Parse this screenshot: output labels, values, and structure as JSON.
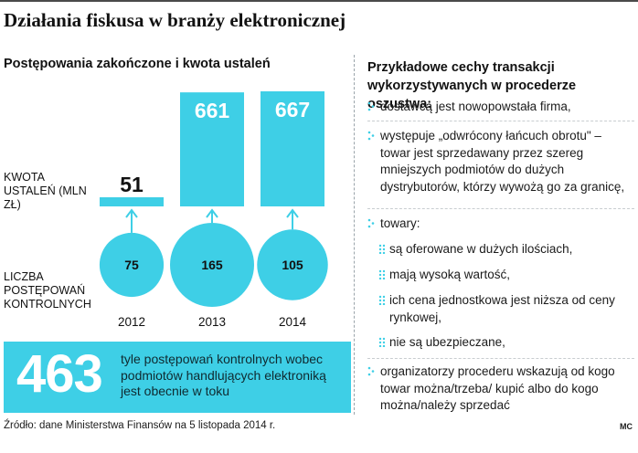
{
  "title": "Działania fiskusa w branży elektronicznej",
  "chart_data": {
    "type": "bar",
    "subtitle": "Postępowania zakończone i kwota ustaleń",
    "categories": [
      "2012",
      "2013",
      "2014"
    ],
    "series": [
      {
        "name": "KWOTA USTALEŃ (MLN ZŁ)",
        "values": [
          51,
          661,
          667
        ]
      },
      {
        "name": "LICZBA POSTĘPOWAŃ KONTROLNYCH",
        "values": [
          75,
          165,
          105
        ]
      }
    ],
    "colors": {
      "bar": "#3ecfe6",
      "arrow": "#3ecfe6",
      "text": "#111111"
    }
  },
  "labels": {
    "amount": "KWOTA USTALEŃ (MLN ZŁ)",
    "count": "LICZBA POSTĘPOWAŃ KONTROLNYCH"
  },
  "right_panel": {
    "title": "Przykładowe cechy transakcji wykorzystywanych w procederze oszustwa:",
    "items": [
      "dostawcą jest nowopowstała firma,",
      "występuje „odwrócony łańcuch obrotu\" – towar jest sprzedawany przez szereg mniejszych podmiotów do dużych dystrybutorów, którzy wywożą go za granicę,",
      "towary:",
      "organizatorzy procederu wskazują od kogo towar można/trzeba/ kupić albo do kogo można/należy sprzedać"
    ],
    "subitems": [
      "są oferowane w dużych ilościach,",
      "mają wysoką wartość,",
      "ich cena jednostkowa jest niższa od ceny rynkowej,",
      "nie są ubezpieczane,"
    ]
  },
  "banner": {
    "number": "463",
    "text": "tyle postępowań kontrolnych wobec podmiotów handlujących elektroniką jest obecnie w toku"
  },
  "source": "Źródło: dane Ministerstwa Finansów na 5 listopada 2014 r.",
  "credit": "MC",
  "icons": {
    "bullet": "dots-bullet-icon"
  }
}
